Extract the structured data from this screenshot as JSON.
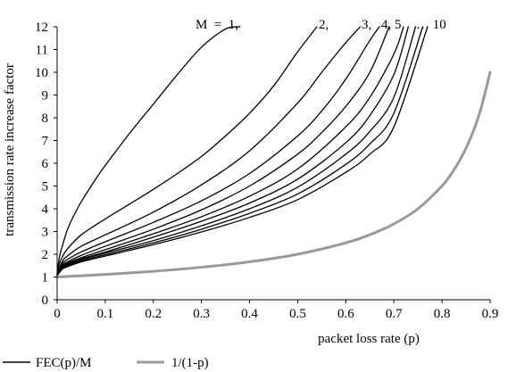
{
  "chart_data": {
    "type": "line",
    "title": "",
    "xlabel": "packet loss rate (p)",
    "ylabel": "transmission rate increase factor",
    "xlim": [
      0,
      0.9
    ],
    "ylim": [
      0,
      12
    ],
    "x_ticks": [
      0,
      0.1,
      0.2,
      0.3,
      0.4,
      0.5,
      0.6,
      0.7,
      0.8,
      0.9
    ],
    "y_ticks": [
      0,
      1,
      2,
      3,
      4,
      5,
      6,
      7,
      8,
      9,
      10,
      11,
      12
    ],
    "grid": false,
    "legend_position": "bottom-left",
    "legend": [
      {
        "label": "FEC(p)/M",
        "color": "#000000"
      },
      {
        "label": "1/(1-p)",
        "color": "#999999"
      }
    ],
    "annotations": {
      "m_prefix": "M  =  1,",
      "m_2": "2,",
      "m_3": "3,",
      "m_4_5": "4, 5",
      "m_dots": "… 10"
    },
    "series": [
      {
        "group": "FEC(p)/M",
        "M": 1,
        "color": "#000000",
        "x": [
          0,
          0.005,
          0.01,
          0.02,
          0.03,
          0.05,
          0.08,
          0.1,
          0.15,
          0.2,
          0.25,
          0.3,
          0.35,
          0.38
        ],
        "y": [
          1.2,
          1.9,
          2.3,
          3.0,
          3.5,
          4.3,
          5.3,
          5.9,
          7.3,
          8.6,
          9.9,
          11.1,
          11.9,
          12
        ]
      },
      {
        "group": "FEC(p)/M",
        "M": 2,
        "color": "#000000",
        "x": [
          0,
          0.005,
          0.01,
          0.02,
          0.05,
          0.1,
          0.15,
          0.2,
          0.25,
          0.3,
          0.35,
          0.4,
          0.45,
          0.5,
          0.54
        ],
        "y": [
          1.15,
          1.6,
          1.85,
          2.2,
          2.85,
          3.55,
          4.2,
          4.85,
          5.55,
          6.3,
          7.2,
          8.2,
          9.4,
          10.9,
          12
        ]
      },
      {
        "group": "FEC(p)/M",
        "M": 3,
        "color": "#000000",
        "x": [
          0,
          0.01,
          0.02,
          0.05,
          0.1,
          0.2,
          0.3,
          0.4,
          0.5,
          0.55,
          0.6,
          0.63
        ],
        "y": [
          1.12,
          1.65,
          1.9,
          2.35,
          2.85,
          3.85,
          5.05,
          6.55,
          8.65,
          10.0,
          11.3,
          12
        ]
      },
      {
        "group": "FEC(p)/M",
        "M": 4,
        "color": "#000000",
        "x": [
          0,
          0.01,
          0.02,
          0.05,
          0.1,
          0.2,
          0.3,
          0.4,
          0.5,
          0.55,
          0.6,
          0.65,
          0.67
        ],
        "y": [
          1.1,
          1.55,
          1.75,
          2.1,
          2.55,
          3.4,
          4.35,
          5.55,
          7.2,
          8.3,
          9.7,
          11.4,
          12
        ]
      },
      {
        "group": "FEC(p)/M",
        "M": 5,
        "color": "#000000",
        "x": [
          0,
          0.01,
          0.02,
          0.05,
          0.1,
          0.2,
          0.3,
          0.4,
          0.5,
          0.55,
          0.6,
          0.65,
          0.69
        ],
        "y": [
          1.1,
          1.5,
          1.65,
          1.95,
          2.35,
          3.1,
          3.95,
          5.0,
          6.4,
          7.35,
          8.5,
          10.0,
          12
        ]
      },
      {
        "group": "FEC(p)/M",
        "M": 6,
        "color": "#000000",
        "x": [
          0,
          0.01,
          0.02,
          0.05,
          0.1,
          0.2,
          0.3,
          0.4,
          0.5,
          0.6,
          0.65,
          0.7,
          0.72
        ],
        "y": [
          1.08,
          1.45,
          1.6,
          1.85,
          2.2,
          2.9,
          3.65,
          4.55,
          5.75,
          7.6,
          8.9,
          10.8,
          12
        ]
      },
      {
        "group": "FEC(p)/M",
        "M": 7,
        "color": "#000000",
        "x": [
          0,
          0.01,
          0.02,
          0.05,
          0.1,
          0.2,
          0.3,
          0.4,
          0.5,
          0.6,
          0.65,
          0.7,
          0.73
        ],
        "y": [
          1.08,
          1.4,
          1.55,
          1.8,
          2.1,
          2.75,
          3.45,
          4.25,
          5.3,
          6.9,
          8.1,
          9.9,
          12
        ]
      },
      {
        "group": "FEC(p)/M",
        "M": 8,
        "color": "#000000",
        "x": [
          0,
          0.01,
          0.02,
          0.05,
          0.1,
          0.2,
          0.3,
          0.4,
          0.5,
          0.6,
          0.65,
          0.7,
          0.745
        ],
        "y": [
          1.07,
          1.38,
          1.5,
          1.75,
          2.05,
          2.6,
          3.25,
          4.0,
          4.95,
          6.4,
          7.4,
          8.9,
          12
        ]
      },
      {
        "group": "FEC(p)/M",
        "M": 9,
        "color": "#000000",
        "x": [
          0,
          0.01,
          0.02,
          0.05,
          0.1,
          0.2,
          0.3,
          0.4,
          0.5,
          0.6,
          0.65,
          0.7,
          0.76
        ],
        "y": [
          1.07,
          1.35,
          1.47,
          1.7,
          1.98,
          2.5,
          3.1,
          3.8,
          4.65,
          5.95,
          6.85,
          8.2,
          12
        ]
      },
      {
        "group": "FEC(p)/M",
        "M": 10,
        "color": "#000000",
        "x": [
          0,
          0.01,
          0.02,
          0.05,
          0.1,
          0.2,
          0.3,
          0.4,
          0.5,
          0.6,
          0.65,
          0.7,
          0.77
        ],
        "y": [
          1.06,
          1.33,
          1.44,
          1.66,
          1.92,
          2.42,
          2.98,
          3.62,
          4.4,
          5.6,
          6.4,
          7.6,
          12
        ]
      },
      {
        "group": "1/(1-p)",
        "color": "#999999",
        "x": [
          0,
          0.1,
          0.2,
          0.3,
          0.4,
          0.5,
          0.6,
          0.65,
          0.7,
          0.75,
          0.8,
          0.82,
          0.84,
          0.86,
          0.88,
          0.9
        ],
        "y": [
          1.0,
          1.111,
          1.25,
          1.429,
          1.667,
          2.0,
          2.5,
          2.857,
          3.333,
          4.0,
          5.0,
          5.556,
          6.25,
          7.143,
          8.333,
          10.0
        ]
      }
    ]
  }
}
